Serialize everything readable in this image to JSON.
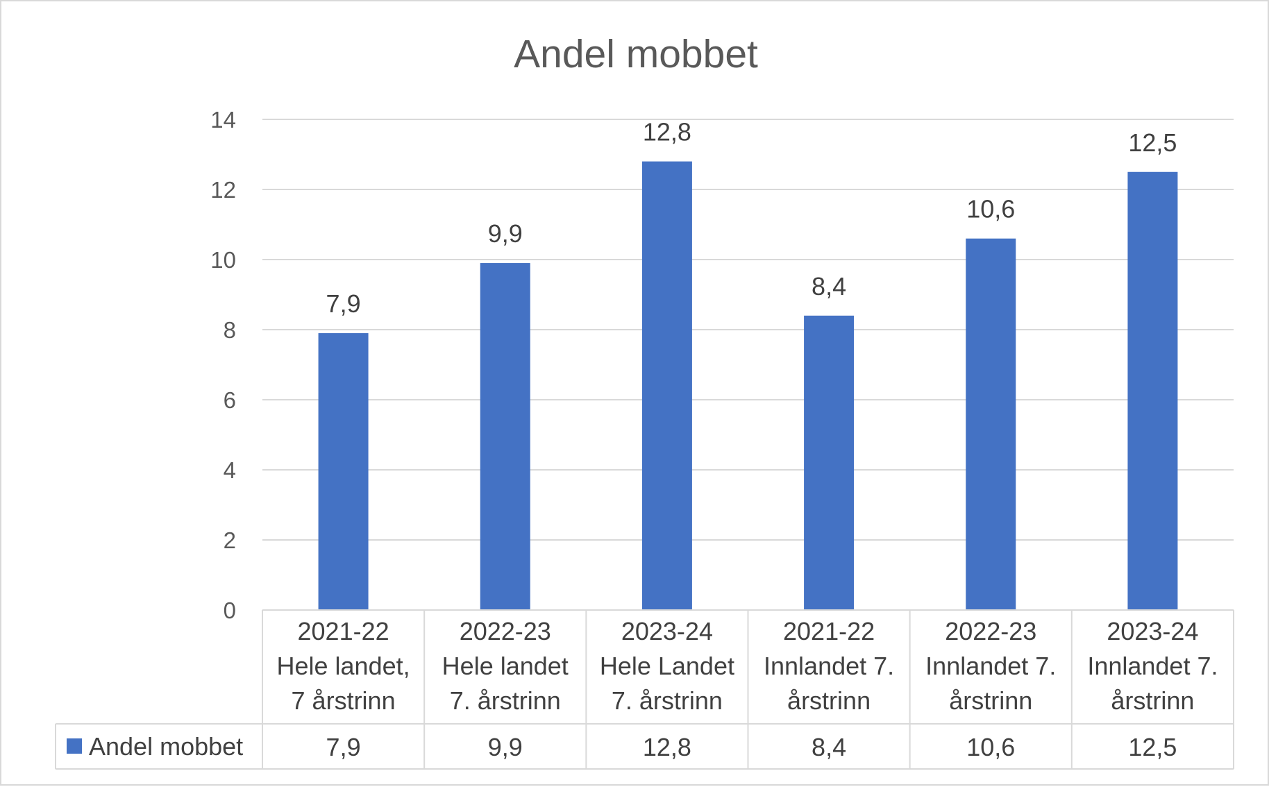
{
  "chart_data": {
    "type": "bar",
    "title": "Andel mobbet",
    "categories": [
      [
        "2021-22",
        "Hele landet,",
        "7 årstrinn"
      ],
      [
        "2022-23",
        "Hele landet",
        "7. årstrinn"
      ],
      [
        "2023-24",
        "Hele Landet",
        "7. årstrinn"
      ],
      [
        "2021-22",
        "Innlandet 7.",
        "årstrinn"
      ],
      [
        "2022-23",
        "Innlandet 7.",
        "årstrinn"
      ],
      [
        "2023-24",
        "Innlandet 7.",
        "årstrinn"
      ]
    ],
    "series": [
      {
        "name": "Andel mobbet",
        "values": [
          7.9,
          9.9,
          12.8,
          8.4,
          10.6,
          12.5
        ],
        "labels": [
          "7,9",
          "9,9",
          "12,8",
          "8,4",
          "10,6",
          "12,5"
        ],
        "color": "#4472c4"
      }
    ],
    "ylim": [
      0,
      14
    ],
    "yticks": [
      0,
      2,
      4,
      6,
      8,
      10,
      12,
      14
    ],
    "grid": true,
    "legend": "data-table",
    "data_table": true
  }
}
